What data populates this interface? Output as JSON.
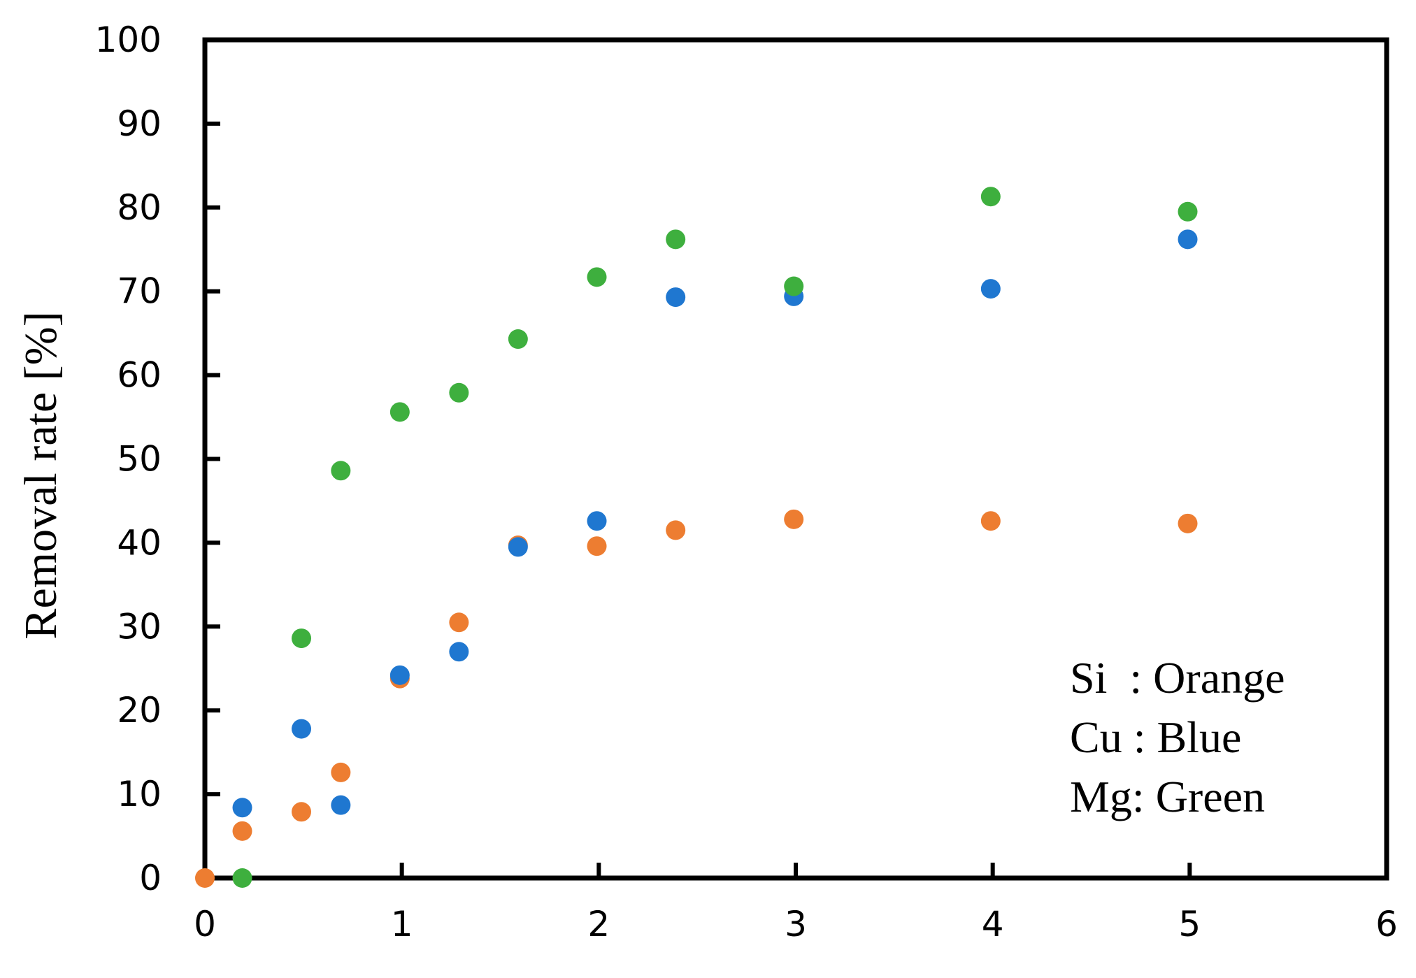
{
  "chart_data": {
    "type": "scatter",
    "title": "",
    "xlabel": "",
    "ylabel": "Removal rate [%]",
    "xlim": [
      0,
      6
    ],
    "ylim": [
      0,
      100
    ],
    "xticks": [
      "0",
      "1",
      "2",
      "3",
      "4",
      "5",
      "6"
    ],
    "yticks": [
      "0",
      "10",
      "20",
      "30",
      "40",
      "50",
      "60",
      "70",
      "80",
      "90",
      "100"
    ],
    "grid": false,
    "series": [
      {
        "color": "#ED7D31",
        "x": [
          0,
          0.19,
          0.49,
          0.69,
          0.99,
          1.29,
          1.59,
          1.99,
          2.39,
          2.99,
          3.99,
          4.99
        ],
        "y": [
          0,
          5.6,
          7.9,
          12.6,
          23.8,
          30.5,
          39.7,
          39.6,
          41.5,
          42.8,
          42.6,
          42.3
        ]
      },
      {
        "color": "#1F77D0",
        "x": [
          0.19,
          0.49,
          0.69,
          0.99,
          1.29,
          1.59,
          1.99,
          2.39,
          2.99,
          3.99,
          4.99
        ],
        "y": [
          8.4,
          17.8,
          8.7,
          24.2,
          27.0,
          39.5,
          42.6,
          69.3,
          69.4,
          70.3,
          76.2
        ]
      },
      {
        "color": "#3EAF3E",
        "x": [
          0.19,
          0.49,
          0.69,
          0.99,
          1.29,
          1.59,
          1.99,
          2.39,
          2.99,
          3.99,
          4.99
        ],
        "y": [
          0,
          28.6,
          48.6,
          55.6,
          57.9,
          64.3,
          71.7,
          76.2,
          70.6,
          81.3,
          79.5
        ]
      }
    ],
    "annotations": [
      "Si  : Orange",
      "Cu : Blue",
      "Mg: Green"
    ],
    "legend_position": "bottom-right"
  }
}
